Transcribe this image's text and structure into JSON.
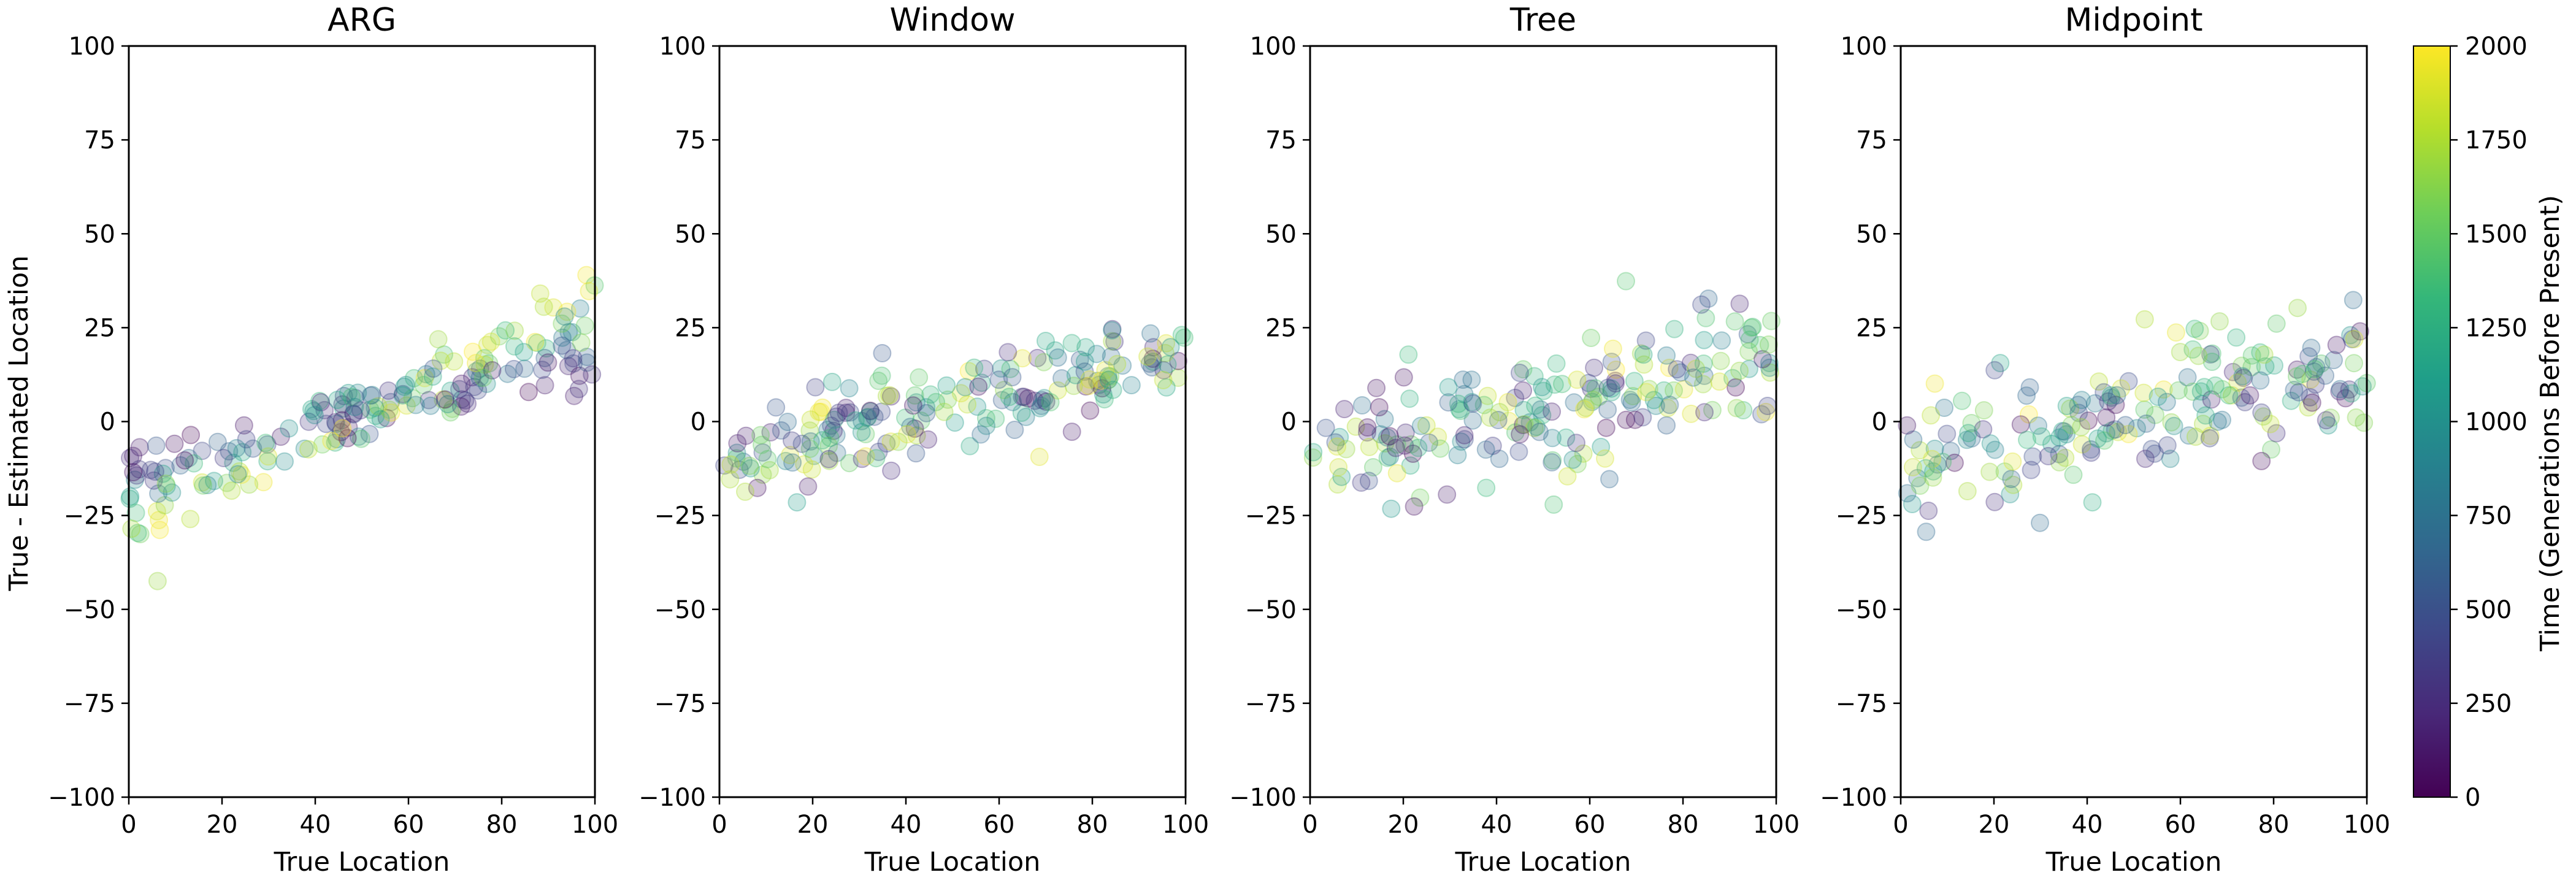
{
  "chart_data": {
    "type": "scatter",
    "ylabel": "True - Estimated Location",
    "ylim": [
      -100,
      100
    ],
    "yticks": [
      100,
      75,
      50,
      25,
      0,
      -25,
      -50,
      -75,
      -100
    ],
    "xticks": [
      0,
      20,
      40,
      60,
      80,
      100
    ],
    "xlim": [
      0,
      100
    ],
    "colorbar": {
      "label": "Time (Generations Before Present)",
      "range": [
        0,
        2000
      ],
      "ticks": [
        2000,
        1750,
        1500,
        1250,
        1000,
        750,
        500,
        250,
        0
      ],
      "colormap": "viridis"
    },
    "panels": [
      {
        "title": "ARG",
        "xlabel": "True Location",
        "trend": {
          "intercept": -24,
          "slope": 0.5
        },
        "spread": 4.5,
        "time_dependent_slope": true,
        "point_count": 200
      },
      {
        "title": "Window",
        "xlabel": "True Location",
        "trend": {
          "intercept": -10,
          "slope": 0.28
        },
        "spread": 7,
        "time_dependent_slope": false,
        "point_count": 200
      },
      {
        "title": "Tree",
        "xlabel": "True Location",
        "trend": {
          "intercept": -10,
          "slope": 0.26
        },
        "spread": 9.5,
        "time_dependent_slope": false,
        "point_count": 200
      },
      {
        "title": "Midpoint",
        "xlabel": "True Location",
        "trend": {
          "intercept": -10,
          "slope": 0.24
        },
        "spread": 9,
        "time_dependent_slope": false,
        "point_count": 200
      }
    ],
    "colors": {
      "axis": "#000000",
      "viridis": [
        "#440154",
        "#482878",
        "#3e4989",
        "#31688e",
        "#26828e",
        "#1f9e89",
        "#35b779",
        "#6ece58",
        "#b5de2b",
        "#fde725"
      ]
    }
  }
}
